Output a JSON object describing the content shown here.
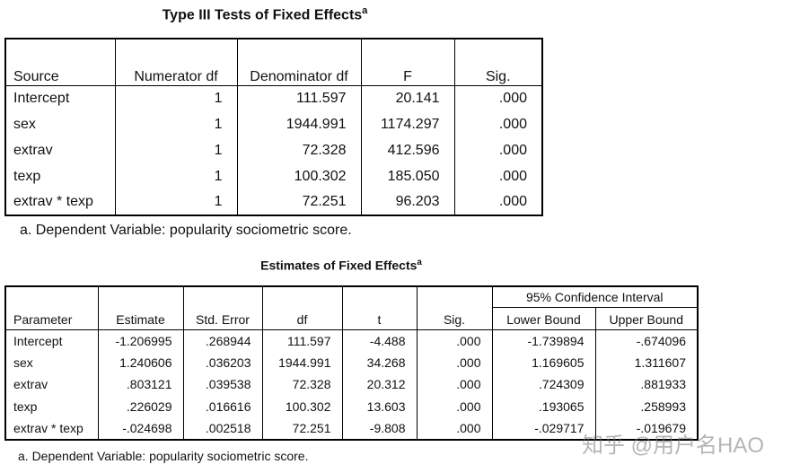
{
  "table1": {
    "title": "Type III Tests of Fixed Effects",
    "title_note": "a",
    "columns": [
      "Source",
      "Numerator df",
      "Denominator df",
      "F",
      "Sig."
    ],
    "rows": [
      [
        "Intercept",
        "1",
        "111.597",
        "20.141",
        ".000"
      ],
      [
        "sex",
        "1",
        "1944.991",
        "1174.297",
        ".000"
      ],
      [
        "extrav",
        "1",
        "72.328",
        "412.596",
        ".000"
      ],
      [
        "texp",
        "1",
        "100.302",
        "185.050",
        ".000"
      ],
      [
        "extrav * texp",
        "1",
        "72.251",
        "96.203",
        ".000"
      ]
    ],
    "footnote": "a. Dependent Variable: popularity sociometric score."
  },
  "table2": {
    "title": "Estimates of Fixed Effects",
    "title_note": "a",
    "columns": [
      "Parameter",
      "Estimate",
      "Std. Error",
      "df",
      "t",
      "Sig."
    ],
    "interval_header": "95% Confidence Interval",
    "interval_columns": [
      "Lower Bound",
      "Upper Bound"
    ],
    "rows": [
      [
        "Intercept",
        "-1.206995",
        ".268944",
        "111.597",
        "-4.488",
        ".000",
        "-1.739894",
        "-.674096"
      ],
      [
        "sex",
        "1.240606",
        ".036203",
        "1944.991",
        "34.268",
        ".000",
        "1.169605",
        "1.311607"
      ],
      [
        "extrav",
        ".803121",
        ".039538",
        "72.328",
        "20.312",
        ".000",
        ".724309",
        ".881933"
      ],
      [
        "texp",
        ".226029",
        ".016616",
        "100.302",
        "13.603",
        ".000",
        ".193065",
        ".258993"
      ],
      [
        "extrav * texp",
        "-.024698",
        ".002518",
        "72.251",
        "-9.808",
        ".000",
        "-.029717",
        "-.019679"
      ]
    ],
    "footnote": "a. Dependent Variable: popularity sociometric score."
  },
  "watermark": "知乎 @用户名HAO"
}
